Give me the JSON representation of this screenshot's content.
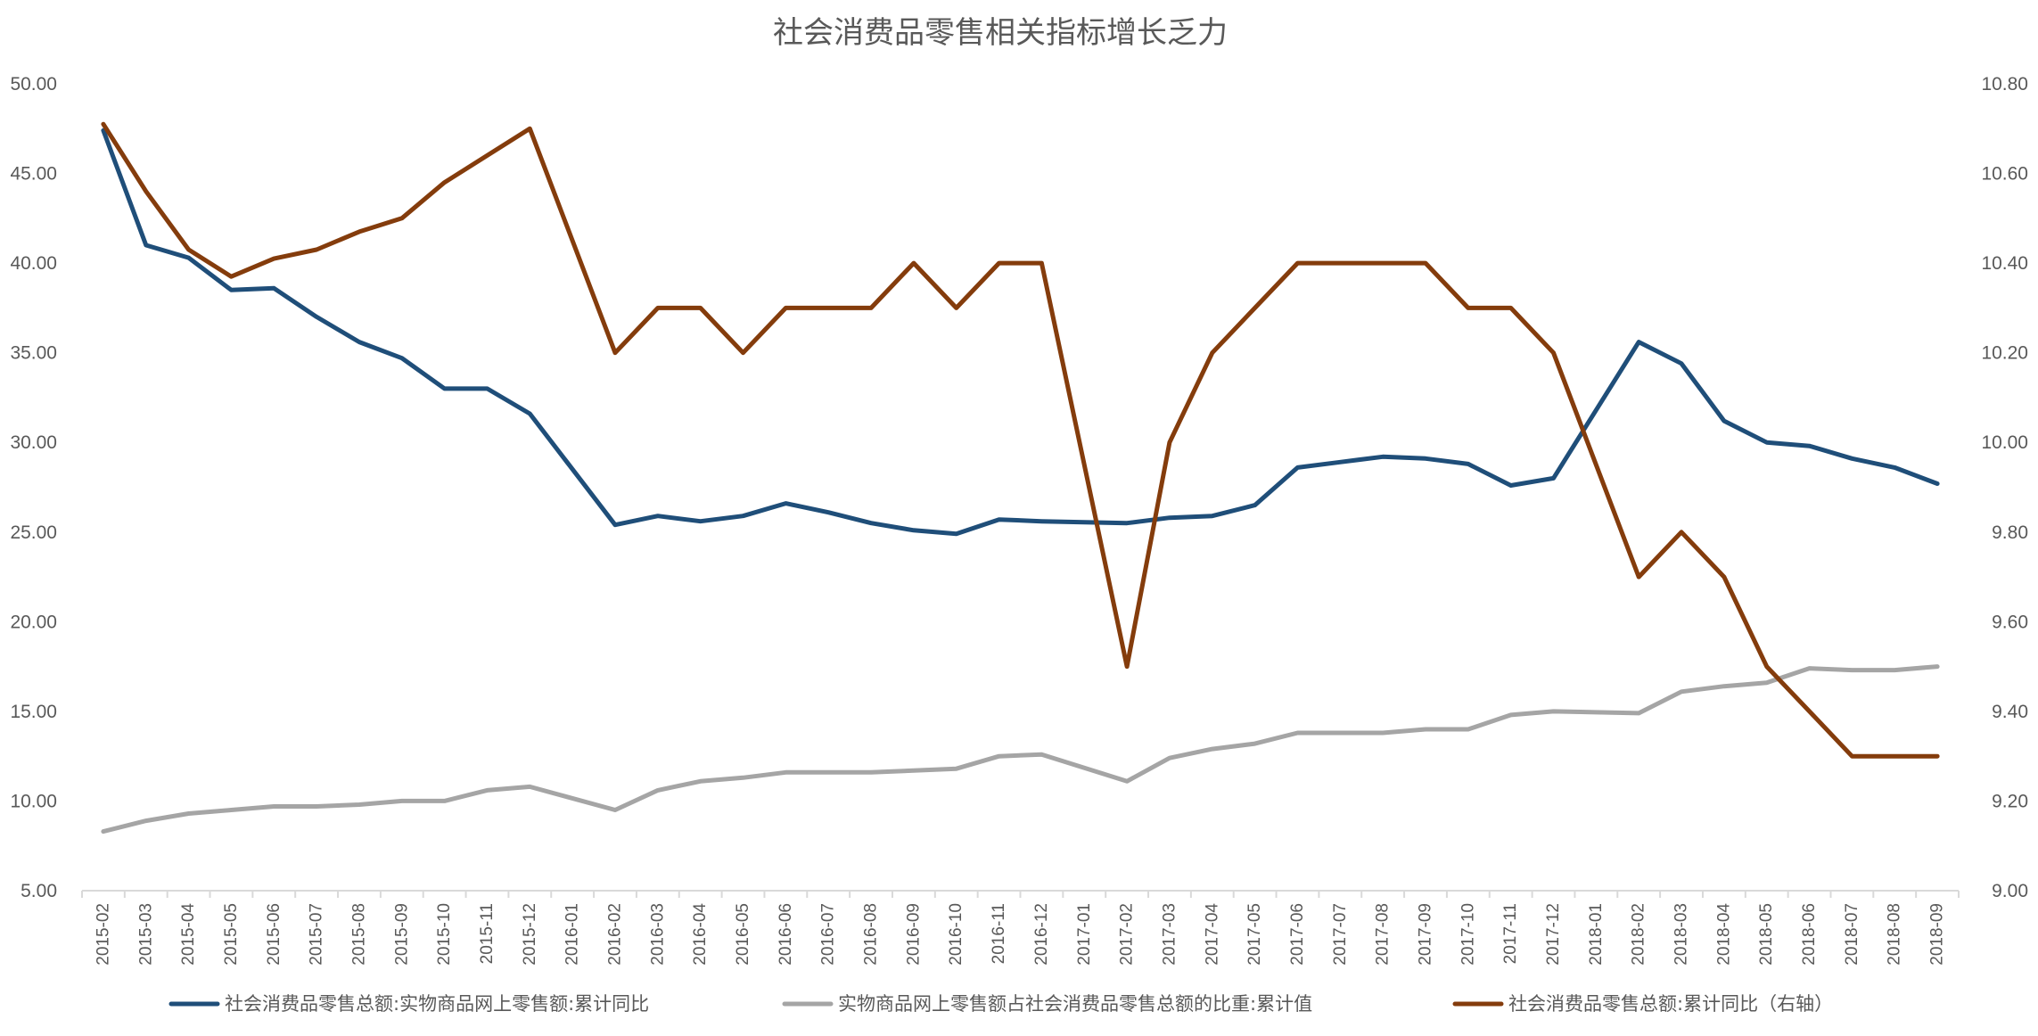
{
  "chart_data": {
    "type": "line",
    "title": "社会消费品零售相关指标增长乏力",
    "x": [
      "2015-02",
      "2015-03",
      "2015-04",
      "2015-05",
      "2015-06",
      "2015-07",
      "2015-08",
      "2015-09",
      "2015-10",
      "2015-11",
      "2015-12",
      "2016-01",
      "2016-02",
      "2016-03",
      "2016-04",
      "2016-05",
      "2016-06",
      "2016-07",
      "2016-08",
      "2016-09",
      "2016-10",
      "2016-11",
      "2016-12",
      "2017-01",
      "2017-02",
      "2017-03",
      "2017-04",
      "2017-05",
      "2017-06",
      "2017-07",
      "2017-08",
      "2017-09",
      "2017-10",
      "2017-11",
      "2017-12",
      "2018-01",
      "2018-02",
      "2018-03",
      "2018-04",
      "2018-05",
      "2018-06",
      "2018-07",
      "2018-08",
      "2018-09"
    ],
    "y_left": {
      "min": 5,
      "max": 50,
      "step": 5,
      "tick_labels": [
        "5.00",
        "10.00",
        "15.00",
        "20.00",
        "25.00",
        "30.00",
        "35.00",
        "40.00",
        "45.00",
        "50.00"
      ]
    },
    "y_right": {
      "min": 9.0,
      "max": 10.8,
      "step": 0.2,
      "tick_labels": [
        "9.00",
        "9.20",
        "9.40",
        "9.60",
        "9.80",
        "10.00",
        "10.20",
        "10.40",
        "10.60",
        "10.80"
      ]
    },
    "grid": false,
    "legend_position": "bottom",
    "series": [
      {
        "name": "社会消费品零售总额:实物商品网上零售额:累计同比",
        "axis": "left",
        "color": "#1F4E79",
        "values": [
          47.4,
          41.0,
          40.3,
          38.5,
          38.6,
          37.0,
          35.6,
          34.7,
          33.0,
          33.0,
          31.6,
          null,
          25.4,
          25.9,
          25.6,
          25.9,
          26.6,
          26.1,
          25.5,
          25.1,
          24.9,
          25.7,
          25.6,
          null,
          25.5,
          25.8,
          25.9,
          26.5,
          28.6,
          28.9,
          29.2,
          29.1,
          28.8,
          27.6,
          28.0,
          null,
          35.6,
          34.4,
          31.2,
          30.0,
          29.8,
          29.1,
          28.6,
          27.7
        ]
      },
      {
        "name": "实物商品网上零售额占社会消费品零售总额的比重:累计值",
        "axis": "left",
        "color": "#A5A5A5",
        "values": [
          8.3,
          8.9,
          9.3,
          9.5,
          9.7,
          9.7,
          9.8,
          10.0,
          10.0,
          10.6,
          10.8,
          null,
          9.5,
          10.6,
          11.1,
          11.3,
          11.6,
          11.6,
          11.6,
          11.7,
          11.8,
          12.5,
          12.6,
          null,
          11.1,
          12.4,
          12.9,
          13.2,
          13.8,
          13.8,
          13.8,
          14.0,
          14.0,
          14.8,
          15.0,
          null,
          14.9,
          16.1,
          16.4,
          16.6,
          17.4,
          17.3,
          17.3,
          17.5
        ]
      },
      {
        "name": "社会消费品零售总额:累计同比（右轴）",
        "axis": "right",
        "color": "#843C0C",
        "values": [
          10.71,
          10.56,
          10.43,
          10.37,
          10.41,
          10.43,
          10.47,
          10.5,
          10.58,
          10.64,
          10.7,
          null,
          10.2,
          10.3,
          10.3,
          10.2,
          10.3,
          10.3,
          10.3,
          10.4,
          10.3,
          10.4,
          10.4,
          null,
          9.5,
          10.0,
          10.2,
          10.3,
          10.4,
          10.4,
          10.4,
          10.4,
          10.3,
          10.3,
          10.2,
          null,
          9.7,
          9.8,
          9.7,
          9.5,
          9.4,
          9.3,
          9.3,
          9.3
        ]
      }
    ]
  }
}
